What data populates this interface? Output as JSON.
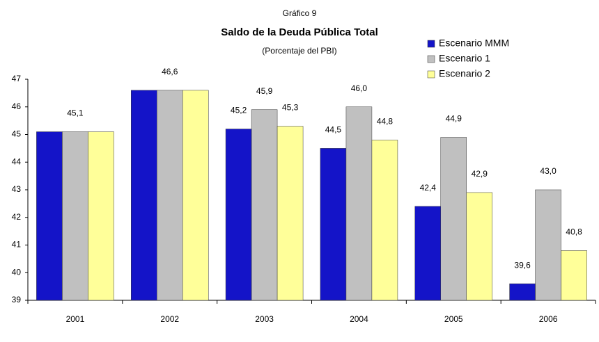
{
  "chart_data": {
    "type": "bar",
    "supertitle": "Gráfico 9",
    "title": "Saldo de la Deuda Pública Total",
    "subtitle": "(Porcentaje del PBI)",
    "categories": [
      "2001",
      "2002",
      "2003",
      "2004",
      "2005",
      "2006"
    ],
    "series": [
      {
        "name": "Escenario MMM",
        "color": "#1414c8",
        "values": [
          45.1,
          46.6,
          45.2,
          44.5,
          42.4,
          39.6
        ],
        "value_labels": [
          null,
          null,
          "45,2",
          "44,5",
          "42,4",
          "39,6"
        ]
      },
      {
        "name": "Escenario 1",
        "color": "#c0c0c0",
        "values": [
          45.1,
          46.6,
          45.9,
          46.0,
          44.9,
          43.0
        ],
        "value_labels": [
          "45,1",
          "46,6",
          "45,9",
          "46,0",
          "44,9",
          "43,0"
        ]
      },
      {
        "name": "Escenario 2",
        "color": "#ffff99",
        "values": [
          45.1,
          46.6,
          45.3,
          44.8,
          42.9,
          40.8
        ],
        "value_labels": [
          null,
          null,
          "45,3",
          "44,8",
          "42,9",
          "40,8"
        ]
      }
    ],
    "ylim": [
      39,
      47
    ],
    "yticks": [
      39,
      40,
      41,
      42,
      43,
      44,
      45,
      46,
      47
    ],
    "grid": false,
    "legend": "top-right"
  }
}
